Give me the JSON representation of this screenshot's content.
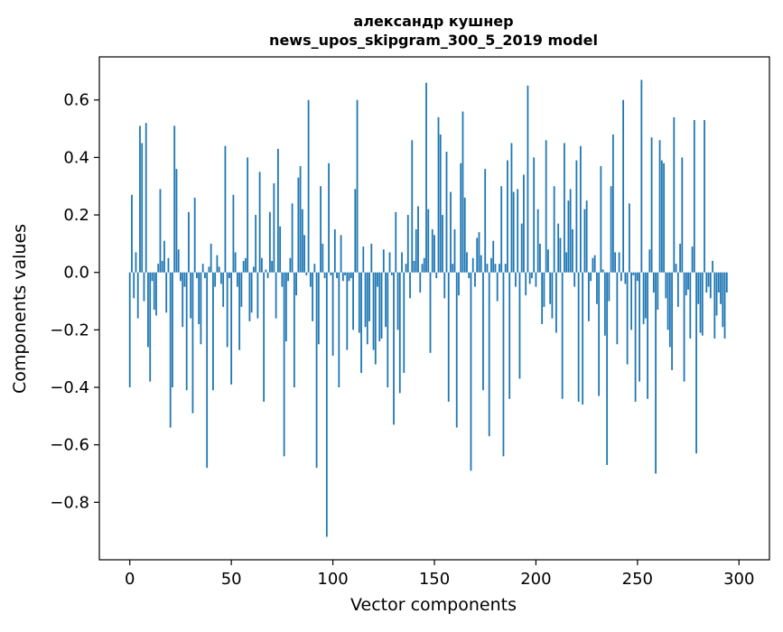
{
  "chart_data": {
    "type": "bar",
    "title": "александр кушнер",
    "subtitle": "news_upos_skipgram_300_5_2019 model",
    "xlabel": "Vector components",
    "ylabel": "Components values",
    "xlim": [
      -15,
      315
    ],
    "ylim": [
      -1.0,
      0.75
    ],
    "xticks": [
      0,
      50,
      100,
      150,
      200,
      250,
      300
    ],
    "yticks": [
      -0.8,
      -0.6,
      -0.4,
      -0.2,
      0.0,
      0.2,
      0.4,
      0.6
    ],
    "xtick_labels": [
      "0",
      "50",
      "100",
      "150",
      "200",
      "250",
      "300"
    ],
    "ytick_labels": [
      "−0.8",
      "−0.6",
      "−0.4",
      "−0.2",
      "0.0",
      "0.2",
      "0.4",
      "0.6"
    ],
    "grid": false,
    "bar_color": "#1f77b4",
    "values": [
      -0.4,
      0.27,
      -0.09,
      0.07,
      -0.16,
      0.51,
      0.45,
      -0.1,
      0.52,
      -0.26,
      -0.38,
      -0.03,
      -0.13,
      -0.15,
      0.03,
      0.29,
      0.04,
      0.11,
      -0.14,
      0.05,
      -0.54,
      -0.4,
      0.51,
      0.36,
      0.08,
      -0.03,
      -0.19,
      -0.05,
      -0.41,
      0.21,
      -0.16,
      -0.49,
      0.26,
      -0.02,
      -0.18,
      -0.25,
      0.03,
      -0.02,
      -0.68,
      0.02,
      0.1,
      -0.41,
      -0.05,
      0.06,
      0.02,
      -0.04,
      -0.12,
      0.44,
      -0.26,
      -0.02,
      -0.39,
      0.27,
      0.07,
      -0.05,
      -0.27,
      -0.12,
      0.04,
      0.05,
      0.4,
      -0.17,
      -0.14,
      0.02,
      0.2,
      -0.16,
      0.35,
      0.05,
      -0.45,
      0.01,
      -0.02,
      0.21,
      0.04,
      0.31,
      -0.16,
      0.43,
      0.16,
      -0.05,
      -0.64,
      -0.24,
      -0.03,
      0.05,
      0.24,
      -0.4,
      -0.08,
      0.33,
      0.37,
      0.22,
      0.13,
      -0.01,
      0.6,
      -0.05,
      -0.17,
      0.03,
      -0.68,
      -0.25,
      0.3,
      0.1,
      -0.02,
      -0.92,
      0.38,
      -0.01,
      -0.29,
      0.15,
      -0.02,
      -0.4,
      0.13,
      -0.03,
      -0.01,
      -0.27,
      -0.03,
      -0.02,
      -0.2,
      0.29,
      0.6,
      -0.21,
      -0.35,
      0.09,
      -0.19,
      -0.25,
      -0.17,
      0.1,
      -0.27,
      -0.32,
      -0.05,
      -0.24,
      -0.23,
      0.08,
      -0.19,
      -0.4,
      0.07,
      -0.01,
      -0.53,
      0.21,
      -0.2,
      -0.42,
      0.07,
      -0.35,
      0.03,
      0.2,
      -0.09,
      0.46,
      0.04,
      0.15,
      0.23,
      -0.07,
      0.03,
      0.05,
      0.66,
      0.22,
      -0.28,
      0.15,
      0.13,
      -0.02,
      0.54,
      0.48,
      0.2,
      -0.09,
      0.42,
      -0.45,
      0.28,
      0.03,
      0.15,
      -0.54,
      -0.08,
      0.38,
      0.56,
      0.26,
      0.07,
      -0.02,
      -0.69,
      0.05,
      -0.05,
      0.12,
      0.14,
      0.06,
      -0.41,
      0.36,
      0.03,
      -0.57,
      0.05,
      0.11,
      0.03,
      -0.1,
      0.03,
      0.3,
      -0.64,
      0.03,
      0.39,
      -0.44,
      0.45,
      0.28,
      -0.05,
      0.29,
      -0.37,
      0.17,
      0.34,
      -0.08,
      0.65,
      -0.04,
      -0.02,
      0.4,
      -0.05,
      0.22,
      0.1,
      -0.18,
      -0.12,
      0.46,
      0.08,
      -0.11,
      -0.16,
      0.3,
      -0.21,
      0.17,
      0.12,
      -0.44,
      0.45,
      0.07,
      0.25,
      0.29,
      0.15,
      -0.05,
      0.39,
      -0.45,
      0.44,
      -0.46,
      0.22,
      0.25,
      -0.17,
      -0.03,
      0.05,
      0.06,
      -0.11,
      -0.43,
      0.37,
      0.01,
      -0.22,
      -0.67,
      -0.1,
      0.3,
      0.48,
      0.07,
      -0.25,
      0.07,
      -0.03,
      0.6,
      -0.04,
      -0.32,
      0.24,
      -0.2,
      -0.01,
      -0.45,
      -0.03,
      -0.38,
      0.67,
      -0.18,
      -0.16,
      -0.44,
      0.08,
      0.47,
      -0.07,
      -0.7,
      -0.13,
      0.46,
      0.39,
      0.38,
      -0.09,
      -0.2,
      -0.26,
      -0.34,
      0.54,
      0.03,
      -0.12,
      0.1,
      0.4,
      -0.38,
      -0.08,
      -0.06,
      -0.23,
      0.09,
      0.53,
      -0.63,
      -0.11,
      -0.21,
      -0.22,
      0.53,
      -0.07,
      -0.05,
      -0.09,
      0.04,
      -0.23,
      -0.15,
      -0.07,
      -0.11,
      -0.19,
      -0.23,
      -0.07
    ]
  }
}
